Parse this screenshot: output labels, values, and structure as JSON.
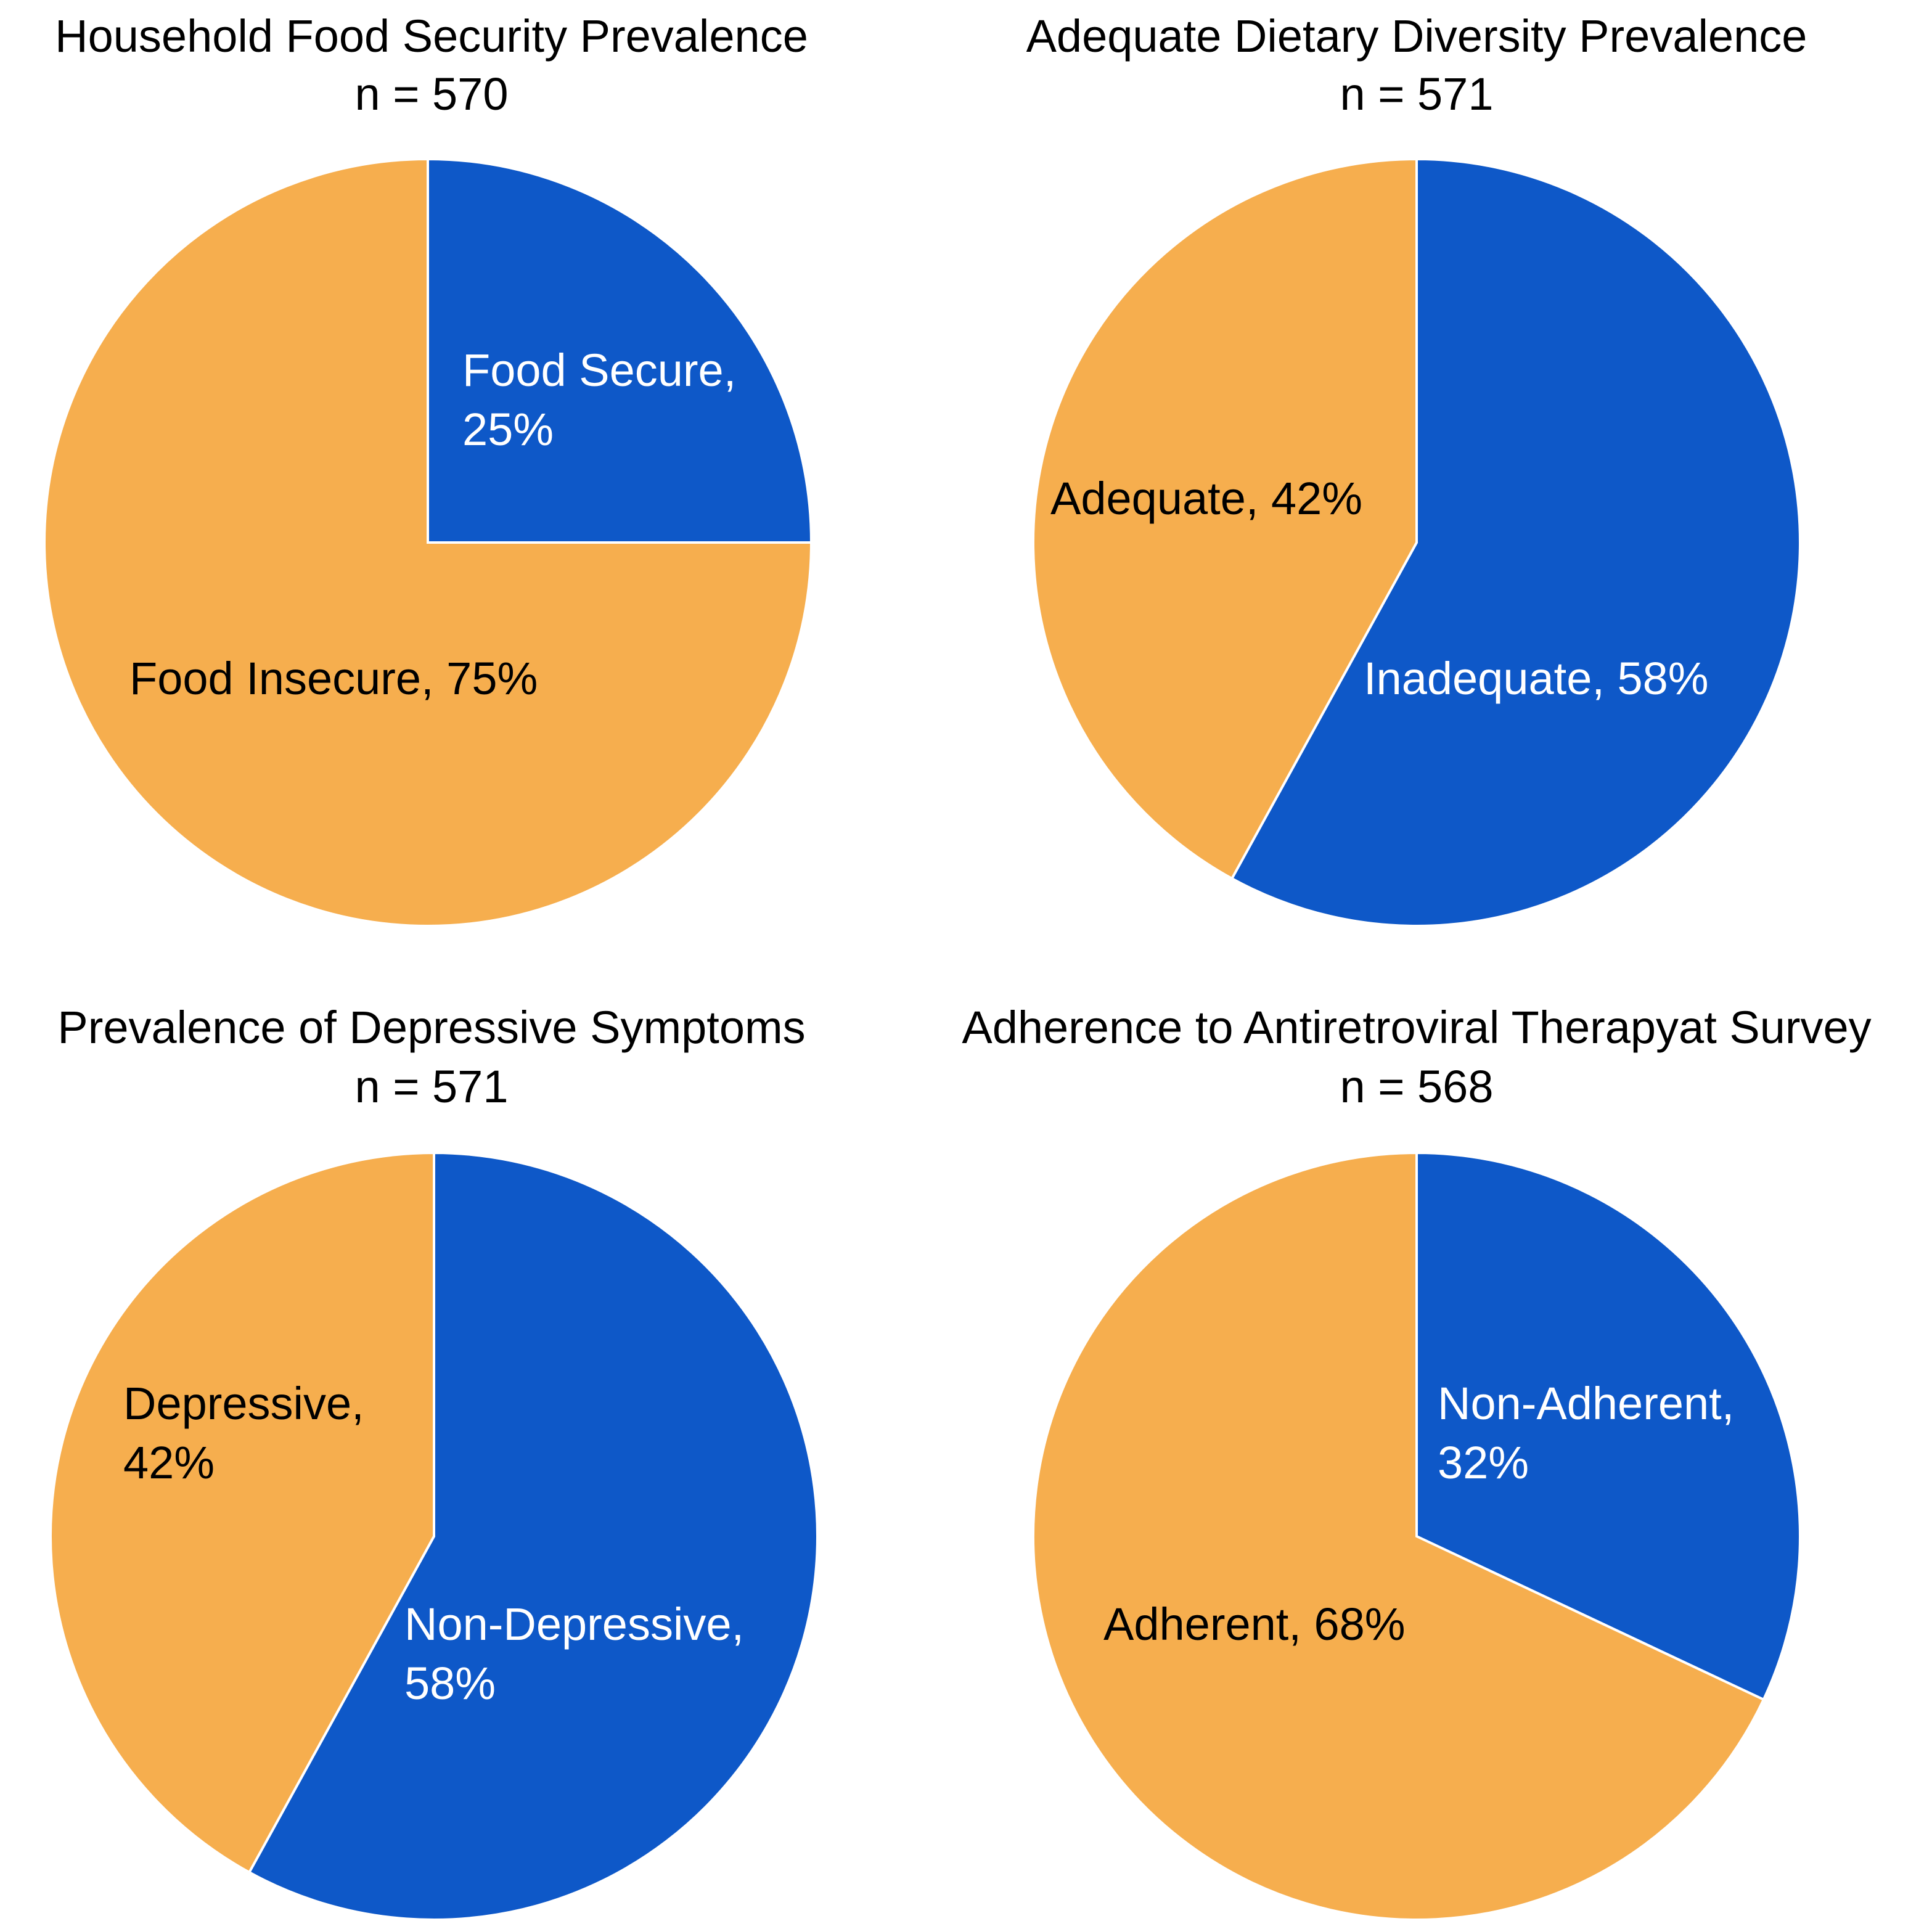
{
  "chart_data": [
    {
      "type": "pie",
      "title": "Household Food Security Prevalence",
      "subtitle": "n = 570",
      "slices": [
        {
          "label": "Food Secure",
          "value": 25,
          "text": [
            "Food Secure,",
            "25%"
          ],
          "color": "#0E58C8",
          "text_color": "#ffffff"
        },
        {
          "label": "Food Insecure",
          "value": 75,
          "text": [
            "Food Insecure, 75%"
          ],
          "color": "#F6AE4E",
          "text_color": "#000000"
        }
      ]
    },
    {
      "type": "pie",
      "title": "Adequate Dietary Diversity Prevalence",
      "subtitle": "n = 571",
      "slices": [
        {
          "label": "Inadequate",
          "value": 58,
          "text": [
            "Inadequate, 58%"
          ],
          "color": "#0E58C8",
          "text_color": "#ffffff"
        },
        {
          "label": "Adequate",
          "value": 42,
          "text": [
            "Adequate, 42%"
          ],
          "color": "#F6AE4E",
          "text_color": "#000000"
        }
      ]
    },
    {
      "type": "pie",
      "title": "Prevalence of Depressive Symptoms",
      "subtitle": "n = 571",
      "slices": [
        {
          "label": "Non-Depressive",
          "value": 58,
          "text": [
            "Non-Depressive,",
            "58%"
          ],
          "color": "#0E58C8",
          "text_color": "#ffffff"
        },
        {
          "label": "Depressive",
          "value": 42,
          "text": [
            "Depressive,",
            "42%"
          ],
          "color": "#F6AE4E",
          "text_color": "#000000"
        }
      ]
    },
    {
      "type": "pie",
      "title": "Adherence to Antiretroviral Therapyat Survey",
      "subtitle": "n = 568",
      "slices": [
        {
          "label": "Non-Adherent",
          "value": 32,
          "text": [
            "Non-Adherent,",
            "32%"
          ],
          "color": "#0E58C8",
          "text_color": "#ffffff"
        },
        {
          "label": "Adherent",
          "value": 68,
          "text": [
            "Adherent, 68%"
          ],
          "color": "#F6AE4E",
          "text_color": "#000000"
        }
      ]
    }
  ]
}
